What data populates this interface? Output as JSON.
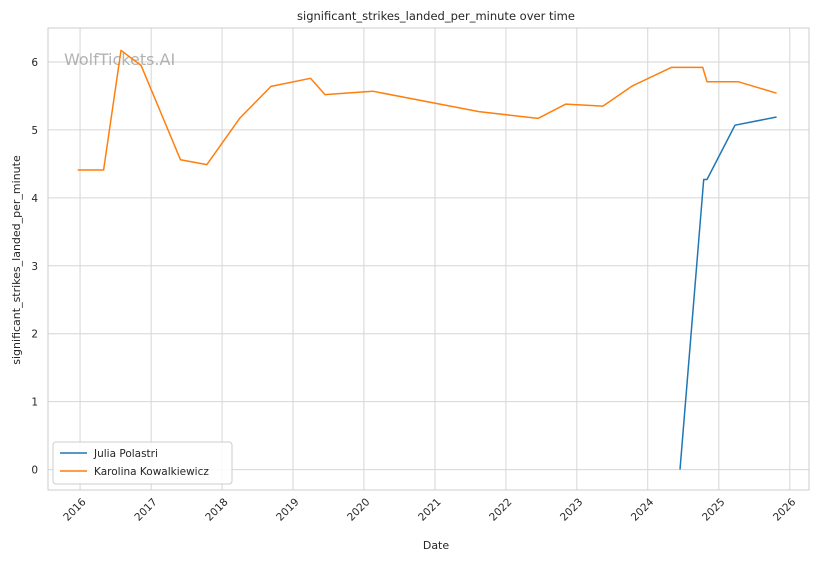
{
  "chart_data": {
    "type": "line",
    "title": "significant_strikes_landed_per_minute over time",
    "xlabel": "Date",
    "ylabel": "significant_strikes_landed_per_minute",
    "watermark": "WolfTickets.AI",
    "x_ticks": [
      "2016",
      "2017",
      "2018",
      "2019",
      "2020",
      "2021",
      "2022",
      "2023",
      "2024",
      "2025",
      "2026"
    ],
    "y_ticks": [
      "0",
      "1",
      "2",
      "3",
      "4",
      "5",
      "6"
    ],
    "xlim": [
      "2015-07-20",
      "2026-04-10"
    ],
    "ylim": [
      -0.3,
      6.5
    ],
    "grid": true,
    "legend_position": "bottom-left",
    "series": [
      {
        "name": "Julia Polastri",
        "color": "#1f77b4",
        "points": [
          [
            "2024-06-15",
            0.0
          ],
          [
            "2024-10-15",
            4.27
          ],
          [
            "2024-11-01",
            4.27
          ],
          [
            "2025-03-25",
            5.07
          ],
          [
            "2025-10-25",
            5.19
          ]
        ]
      },
      {
        "name": "Karolina Kowalkiewicz",
        "color": "#ff7f0e",
        "points": [
          [
            "2015-12-20",
            4.41
          ],
          [
            "2016-05-01",
            4.41
          ],
          [
            "2016-07-30",
            6.17
          ],
          [
            "2016-11-10",
            5.95
          ],
          [
            "2017-06-01",
            4.56
          ],
          [
            "2017-10-15",
            4.49
          ],
          [
            "2018-04-01",
            5.17
          ],
          [
            "2018-09-10",
            5.64
          ],
          [
            "2019-04-01",
            5.76
          ],
          [
            "2019-06-15",
            5.52
          ],
          [
            "2020-02-15",
            5.57
          ],
          [
            "2021-08-15",
            5.27
          ],
          [
            "2022-06-15",
            5.17
          ],
          [
            "2022-11-05",
            5.38
          ],
          [
            "2023-05-15",
            5.35
          ],
          [
            "2023-10-15",
            5.65
          ],
          [
            "2024-05-01",
            5.92
          ],
          [
            "2024-10-10",
            5.92
          ],
          [
            "2024-11-01",
            5.71
          ],
          [
            "2025-04-10",
            5.71
          ],
          [
            "2025-10-25",
            5.54
          ]
        ]
      }
    ]
  }
}
